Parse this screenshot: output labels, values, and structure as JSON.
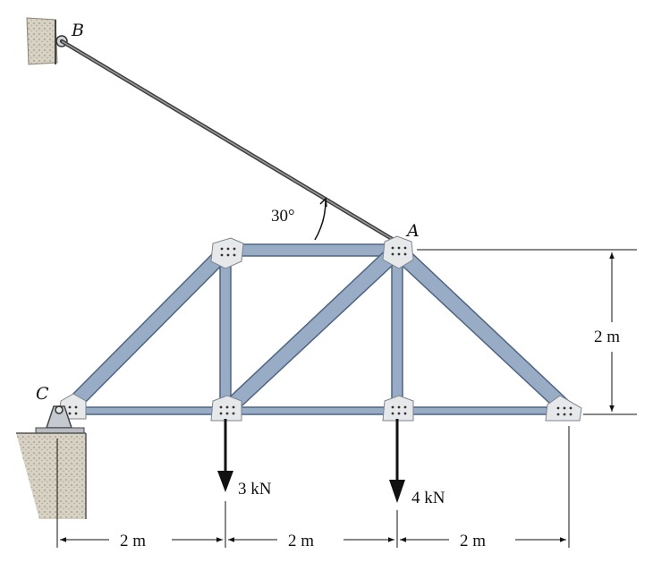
{
  "labels": {
    "point_b": "B",
    "point_a": "A",
    "point_c": "C",
    "angle": "30°",
    "load_left": "3 kN",
    "load_right": "4 kN",
    "height": "2 m",
    "span_1": "2 m",
    "span_2": "2 m",
    "span_3": "2 m"
  },
  "colors": {
    "member_fill": "#98acc6",
    "member_stroke": "#4e6482",
    "plate_fill": "#e6e8ea",
    "cable": "#555555",
    "ground": "#c9c2b4"
  }
}
